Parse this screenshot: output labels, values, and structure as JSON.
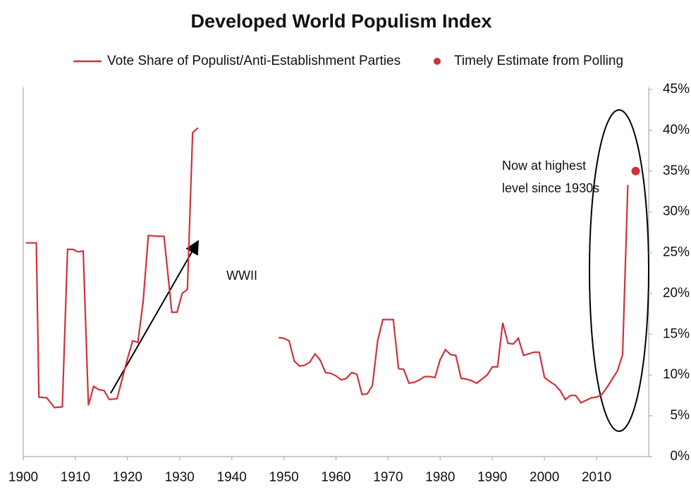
{
  "chart_data": {
    "type": "line",
    "title": "Developed World Populism Index",
    "legend": "top",
    "xlim": [
      1900,
      2020
    ],
    "xticks": [
      1900,
      1910,
      1920,
      1930,
      1940,
      1950,
      1960,
      1970,
      1980,
      1990,
      2000,
      2010
    ],
    "ylim": [
      0,
      45
    ],
    "yaxis_side": "right",
    "yticks": [
      {
        "value": 0,
        "label": "0%"
      },
      {
        "value": 5,
        "label": "5%"
      },
      {
        "value": 10,
        "label": "10%"
      },
      {
        "value": 15,
        "label": "15%"
      },
      {
        "value": 20,
        "label": "20%"
      },
      {
        "value": 25,
        "label": "25%"
      },
      {
        "value": 30,
        "label": "30%"
      },
      {
        "value": 35,
        "label": "35%"
      },
      {
        "value": 40,
        "label": "40%"
      },
      {
        "value": 45,
        "label": "45%"
      }
    ],
    "grid": false,
    "series": [
      {
        "name": "Vote Share of Populist/Anti-Establishment Parties",
        "type": "line",
        "color": "#d0313b",
        "x": [
          1900.5,
          1902.5,
          1903,
          1904.5,
          1906,
          1907.5,
          1908.5,
          1909.5,
          1910.5,
          1911.5,
          1912.5,
          1913.5,
          1914.5,
          1915.5,
          1916.5,
          1918,
          1920,
          1921,
          1922,
          1923,
          1924,
          1926,
          1927,
          1928.5,
          1929.5,
          1930.5,
          1931.5,
          1932.5,
          1933.5,
          1940,
          1949,
          1950,
          1951,
          1952,
          1953,
          1954,
          1955,
          1956,
          1957,
          1958,
          1959,
          1960,
          1961,
          1962,
          1963,
          1964,
          1965,
          1966,
          1967,
          1968,
          1969,
          1970,
          1971,
          1972,
          1973,
          1974,
          1975,
          1976,
          1977,
          1978,
          1979,
          1980,
          1981,
          1982,
          1983,
          1984,
          1985,
          1986,
          1987,
          1988,
          1989,
          1990,
          1991,
          1992,
          1993,
          1994,
          1995,
          1996,
          1997,
          1998,
          1999,
          2000,
          2001,
          2002,
          2003,
          2004,
          2005,
          2006,
          2007,
          2008,
          2009,
          2010,
          2011,
          2012,
          2013,
          2014,
          2015,
          2016
        ],
        "values": [
          26.2,
          26.2,
          7.3,
          7.2,
          6.0,
          6.1,
          25.4,
          25.4,
          25.1,
          25.2,
          6.3,
          8.6,
          8.2,
          8.1,
          7.0,
          7.1,
          12.0,
          14.2,
          14.0,
          19.0,
          27.1,
          27.0,
          27.0,
          17.7,
          17.7,
          20.0,
          20.5,
          39.7,
          40.3,
          null,
          14.6,
          14.5,
          14.2,
          11.7,
          11.1,
          11.2,
          11.6,
          12.6,
          11.8,
          10.3,
          10.2,
          9.9,
          9.4,
          9.6,
          10.3,
          10.1,
          7.6,
          7.7,
          8.7,
          14.2,
          16.8,
          16.8,
          16.8,
          10.8,
          10.7,
          9.0,
          9.1,
          9.4,
          9.8,
          9.8,
          9.7,
          11.9,
          13.1,
          12.5,
          12.4,
          9.6,
          9.5,
          9.3,
          9.0,
          9.5,
          10.0,
          11.0,
          11.0,
          16.4,
          13.9,
          13.8,
          14.5,
          12.4,
          12.6,
          12.8,
          12.8,
          9.7,
          9.2,
          8.8,
          8.1,
          7.0,
          7.5,
          7.5,
          6.6,
          6.9,
          7.2,
          7.3,
          7.6,
          8.5,
          9.5,
          10.5,
          12.5,
          33.3
        ]
      },
      {
        "name": "Timely Estimate from Polling",
        "type": "scatter",
        "color": "#d0313b",
        "x": [
          2017.5
        ],
        "values": [
          35
        ]
      }
    ],
    "annotations": [
      "WWII",
      "Now at highest",
      "level since 1930s"
    ]
  }
}
